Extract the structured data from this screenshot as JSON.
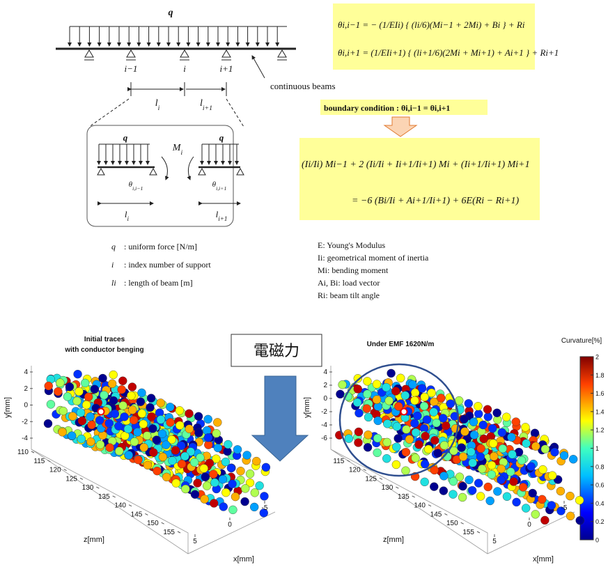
{
  "beam_diagram": {
    "load": "q",
    "supports": [
      "i−1",
      "i",
      "i+1"
    ],
    "span_1": {
      "base": "l",
      "sub": "i"
    },
    "span_2": {
      "base": "l",
      "sub": "i+1"
    },
    "callout": "continuous beams",
    "detail": {
      "load_left": "q",
      "load_right": "q",
      "moment": {
        "base": "M",
        "sub": "i"
      },
      "angle_left": {
        "base": "θ",
        "sub": "i,i−1"
      },
      "angle_right": {
        "base": "θ",
        "sub": "i,i+1"
      },
      "span_left": {
        "base": "l",
        "sub": "i"
      },
      "span_right": {
        "base": "l",
        "sub": "i+1"
      }
    }
  },
  "symbols": [
    {
      "symbol": "q",
      "text": ": uniform force [N/m]"
    },
    {
      "symbol": "i",
      "text": ": index number of support"
    },
    {
      "symbol": "li",
      "text": ": length of beam [m]"
    }
  ],
  "equations": {
    "theta_left": "θi,i−1 = − (1/EIi) { (li/6)(Mi−1 + 2Mi) + Bi } + Ri",
    "theta_right": "θi,i+1 = (1/EIi+1) { (li+1/6)(2Mi + Mi+1) + Ai+1 } + Ri+1",
    "boundary": "boundary condition : θi,i−1 = θi,i+1",
    "three_moment_1": "(Ii/Ii) Mi−1 + 2 (Ii/Ii + Ii+1/Ii+1) Mi + (Ii+1/Ii+1) Mi+1",
    "three_moment_2": "= −6 (Bi/Ii + Ai+1/Ii+1) + 6E(Ri − Ri+1)"
  },
  "definitions": [
    "E: Young's Modulus",
    "Ii: geometrical moment of inertia",
    "Mi: bending moment",
    "Ai, Bi: load vector",
    "Ri: beam tilt angle"
  ],
  "force_label": "電磁力",
  "plots": [
    {
      "title": [
        "Initial traces",
        "with conductor benging"
      ],
      "y_label": "y[mm]",
      "z_label": "z[mm]",
      "x_label": "x[mm]",
      "yticks": [
        4,
        2,
        0,
        -2,
        -4
      ],
      "zticks": [
        110,
        115,
        120,
        125,
        130,
        135,
        140,
        145,
        150,
        155
      ],
      "xticks": [
        5,
        0,
        -5
      ]
    },
    {
      "title": [
        "Under EMF 1620N/m"
      ],
      "y_label": "y[mm]",
      "z_label": "z[mm]",
      "x_label": "x[mm]",
      "yticks": [
        4,
        2,
        0,
        -2,
        -4,
        -6
      ],
      "zticks": [
        115,
        120,
        125,
        130,
        135,
        140,
        145,
        150,
        155
      ],
      "xticks": [
        5,
        0,
        -5
      ]
    }
  ],
  "colorbar": {
    "label": "Curvature[%]",
    "ticks": [
      0,
      0.2,
      0.4,
      0.6,
      0.8,
      1,
      1.2,
      1.4,
      1.6,
      1.8,
      2
    ]
  }
}
